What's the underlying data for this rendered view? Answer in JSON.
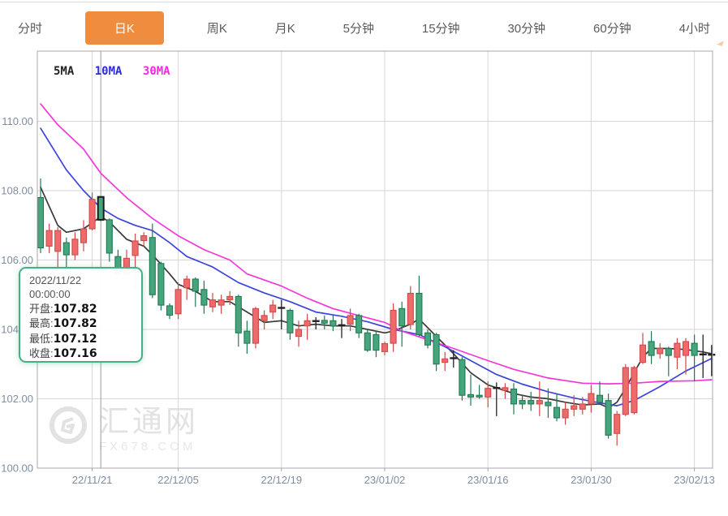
{
  "tabs": {
    "items": [
      {
        "id": "tab-fenshi",
        "label": "分时",
        "active": false
      },
      {
        "id": "tab-ri-k",
        "label": "日K",
        "active": true
      },
      {
        "id": "tab-zhou-k",
        "label": "周K",
        "active": false
      },
      {
        "id": "tab-yue-k",
        "label": "月K",
        "active": false
      },
      {
        "id": "tab-5min",
        "label": "5分钟",
        "active": false
      },
      {
        "id": "tab-15min",
        "label": "15分钟",
        "active": false
      },
      {
        "id": "tab-30min",
        "label": "30分钟",
        "active": false
      },
      {
        "id": "tab-60min",
        "label": "60分钟",
        "active": false
      },
      {
        "id": "tab-4hour",
        "label": "4小时",
        "active": false
      }
    ]
  },
  "legend": {
    "ma5": "5MA",
    "ma10": "10MA",
    "ma30": "30MA"
  },
  "tooltip": {
    "date": "2022/11/22",
    "time": "00:00:00",
    "open_label": "开盘",
    "open": "107.82",
    "high_label": "最高",
    "high": "107.82",
    "low_label": "最低",
    "low": "107.12",
    "close_label": "收盘",
    "close": "107.16"
  },
  "watermark": {
    "brand": "汇通网",
    "site": "FX678.COM"
  },
  "colors": {
    "accent": "#ef8c3e",
    "up_fill": "#ef6a6a",
    "up_stroke": "#cf4a4a",
    "down_fill": "#47a57e",
    "down_stroke": "#1f7a52",
    "doji": "#222222",
    "grid": "#d6d6d6",
    "border": "#a8a8a8",
    "crosshair": "#999999",
    "axis_text": "#7f8da1",
    "ma5": "#3a3a3a",
    "ma10": "#3c44dd",
    "ma30": "#f437d8"
  },
  "chart_data": {
    "type": "candlestick",
    "title": "",
    "ylabel": "",
    "ylim": [
      100,
      110.7
    ],
    "grid": true,
    "legend_entries": [
      "5MA",
      "10MA",
      "30MA"
    ],
    "selected_index": 7,
    "y_axis": {
      "ticks": [
        {
          "value": 110,
          "label": "110.00"
        },
        {
          "value": 108,
          "label": "108.00"
        },
        {
          "value": 106,
          "label": "106.00"
        },
        {
          "value": 104,
          "label": "104.00"
        },
        {
          "value": 102,
          "label": "102.00"
        },
        {
          "value": 100,
          "label": "100.00"
        }
      ]
    },
    "x_axis": {
      "ticks": [
        {
          "index": 6,
          "label": "22/11/21"
        },
        {
          "index": 16,
          "label": "22/12/05"
        },
        {
          "index": 28,
          "label": "22/12/19"
        },
        {
          "index": 40,
          "label": "23/01/02"
        },
        {
          "index": 52,
          "label": "23/01/16"
        },
        {
          "index": 64,
          "label": "23/01/30"
        },
        {
          "index": 76,
          "label": "23/02/13"
        }
      ]
    },
    "candles_format": [
      "open",
      "high",
      "low",
      "close"
    ],
    "candles": [
      [
        107.8,
        108.35,
        106.2,
        106.35
      ],
      [
        106.4,
        107.05,
        106.2,
        106.85
      ],
      [
        106.25,
        106.95,
        105.8,
        106.85
      ],
      [
        106.5,
        106.65,
        105.7,
        106.15
      ],
      [
        106.15,
        106.8,
        106.0,
        106.6
      ],
      [
        106.5,
        107.15,
        106.25,
        106.9
      ],
      [
        106.9,
        107.95,
        106.85,
        107.75
      ],
      [
        107.82,
        107.82,
        107.12,
        107.16
      ],
      [
        107.16,
        107.2,
        105.95,
        106.2
      ],
      [
        106.1,
        106.3,
        105.45,
        105.6
      ],
      [
        105.6,
        106.3,
        105.45,
        106.05
      ],
      [
        106.13,
        106.76,
        105.15,
        106.55
      ],
      [
        106.56,
        106.8,
        106.4,
        106.7
      ],
      [
        106.65,
        107.05,
        104.9,
        105.0
      ],
      [
        105.9,
        105.95,
        104.55,
        104.7
      ],
      [
        104.68,
        104.75,
        104.3,
        104.41
      ],
      [
        104.45,
        105.35,
        104.3,
        105.15
      ],
      [
        105.2,
        105.55,
        104.85,
        105.45
      ],
      [
        105.45,
        105.5,
        104.65,
        105.1
      ],
      [
        105.15,
        105.4,
        104.45,
        104.7
      ],
      [
        104.65,
        105.05,
        104.5,
        104.85
      ],
      [
        104.7,
        105.0,
        104.45,
        104.85
      ],
      [
        104.85,
        105.1,
        104.7,
        104.95
      ],
      [
        104.95,
        105.0,
        103.5,
        103.9
      ],
      [
        103.95,
        104.25,
        103.3,
        103.6
      ],
      [
        103.6,
        104.65,
        103.45,
        104.6
      ],
      [
        104.25,
        104.55,
        104.0,
        104.4
      ],
      [
        104.5,
        104.85,
        104.3,
        104.7
      ],
      [
        104.6,
        104.85,
        104.0,
        104.62
      ],
      [
        104.55,
        104.6,
        103.7,
        103.9
      ],
      [
        103.8,
        104.25,
        103.5,
        104.0
      ],
      [
        104.1,
        104.45,
        103.7,
        104.25
      ],
      [
        104.22,
        104.35,
        104.0,
        104.24
      ],
      [
        104.26,
        104.4,
        104.0,
        104.18
      ],
      [
        104.25,
        104.4,
        103.95,
        104.1
      ],
      [
        104.1,
        104.3,
        103.75,
        104.12
      ],
      [
        104.15,
        104.6,
        103.95,
        104.4
      ],
      [
        104.4,
        104.45,
        103.75,
        103.9
      ],
      [
        103.9,
        104.0,
        103.35,
        103.4
      ],
      [
        103.85,
        103.95,
        103.2,
        103.4
      ],
      [
        103.36,
        103.65,
        103.25,
        103.59
      ],
      [
        103.6,
        104.75,
        103.35,
        104.55
      ],
      [
        104.6,
        104.8,
        103.5,
        104.1
      ],
      [
        104.14,
        105.25,
        104.0,
        105.04
      ],
      [
        105.04,
        105.55,
        103.8,
        103.85
      ],
      [
        103.9,
        104.0,
        103.45,
        103.55
      ],
      [
        103.85,
        103.9,
        102.8,
        103.0
      ],
      [
        103.05,
        103.35,
        102.8,
        103.15
      ],
      [
        103.15,
        103.4,
        102.9,
        103.17
      ],
      [
        103.13,
        103.2,
        101.95,
        102.1
      ],
      [
        102.12,
        102.7,
        101.8,
        102.05
      ],
      [
        102.1,
        102.4,
        102.0,
        102.05
      ],
      [
        102.05,
        102.5,
        101.75,
        102.3
      ],
      [
        102.3,
        102.47,
        101.5,
        102.31
      ],
      [
        102.24,
        102.45,
        102.0,
        102.32
      ],
      [
        102.28,
        102.45,
        101.55,
        101.85
      ],
      [
        101.95,
        102.1,
        101.7,
        101.85
      ],
      [
        101.95,
        102.2,
        101.65,
        101.85
      ],
      [
        101.85,
        102.5,
        101.5,
        101.95
      ],
      [
        101.9,
        102.3,
        101.45,
        101.8
      ],
      [
        101.75,
        102.15,
        101.35,
        101.45
      ],
      [
        101.45,
        101.9,
        101.25,
        101.7
      ],
      [
        101.7,
        102.1,
        101.5,
        101.8
      ],
      [
        101.7,
        102.05,
        101.55,
        101.85
      ],
      [
        101.85,
        102.4,
        101.6,
        102.15
      ],
      [
        102.1,
        102.5,
        101.85,
        101.9
      ],
      [
        101.95,
        102.15,
        100.85,
        100.95
      ],
      [
        101.0,
        101.65,
        100.65,
        101.55
      ],
      [
        101.55,
        103.0,
        101.5,
        102.9
      ],
      [
        101.6,
        102.95,
        101.55,
        102.9
      ],
      [
        103.05,
        103.9,
        103.0,
        103.55
      ],
      [
        103.65,
        103.95,
        103.0,
        103.25
      ],
      [
        103.3,
        103.6,
        103.15,
        103.45
      ],
      [
        103.45,
        103.5,
        102.65,
        103.25
      ],
      [
        103.2,
        103.75,
        102.85,
        103.6
      ],
      [
        103.25,
        103.75,
        102.7,
        103.65
      ],
      [
        103.6,
        103.85,
        102.5,
        103.25
      ],
      [
        103.27,
        103.85,
        102.6,
        103.28
      ],
      [
        103.26,
        103.55,
        102.65,
        103.27
      ]
    ],
    "ma_lines": [
      {
        "name": "5MA",
        "color_key": "ma5",
        "points": [
          [
            0,
            108.1
          ],
          [
            2,
            107.0
          ],
          [
            3,
            106.8
          ],
          [
            5,
            106.9
          ],
          [
            7,
            107.25
          ],
          [
            8,
            107.1
          ],
          [
            10,
            106.6
          ],
          [
            12,
            106.4
          ],
          [
            13,
            106.15
          ],
          [
            15,
            105.6
          ],
          [
            16,
            105.3
          ],
          [
            18,
            105.1
          ],
          [
            20,
            104.8
          ],
          [
            22,
            104.8
          ],
          [
            24,
            104.5
          ],
          [
            26,
            104.2
          ],
          [
            28,
            104.25
          ],
          [
            30,
            104.1
          ],
          [
            32,
            104.15
          ],
          [
            34,
            104.1
          ],
          [
            36,
            104.1
          ],
          [
            38,
            104.0
          ],
          [
            40,
            103.9
          ],
          [
            41,
            103.95
          ],
          [
            43,
            104.15
          ],
          [
            44,
            104.3
          ],
          [
            46,
            103.8
          ],
          [
            48,
            103.3
          ],
          [
            50,
            102.75
          ],
          [
            52,
            102.4
          ],
          [
            55,
            102.15
          ],
          [
            57,
            102.05
          ],
          [
            59,
            102.0
          ],
          [
            61,
            101.9
          ],
          [
            63,
            101.82
          ],
          [
            65,
            101.85
          ],
          [
            66,
            101.74
          ],
          [
            67,
            101.9
          ],
          [
            68,
            102.3
          ],
          [
            69,
            102.75
          ],
          [
            70,
            103.2
          ],
          [
            71,
            103.45
          ],
          [
            73,
            103.45
          ],
          [
            75,
            103.42
          ],
          [
            77,
            103.35
          ],
          [
            78,
            103.3
          ]
        ]
      },
      {
        "name": "10MA",
        "color_key": "ma10",
        "points": [
          [
            0,
            109.8
          ],
          [
            3,
            108.6
          ],
          [
            5,
            108.0
          ],
          [
            7,
            107.5
          ],
          [
            9,
            107.2
          ],
          [
            11,
            107.0
          ],
          [
            13,
            106.85
          ],
          [
            15,
            106.5
          ],
          [
            17,
            106.1
          ],
          [
            20,
            105.8
          ],
          [
            23,
            105.35
          ],
          [
            26,
            105.05
          ],
          [
            29,
            104.8
          ],
          [
            32,
            104.5
          ],
          [
            35,
            104.38
          ],
          [
            38,
            104.22
          ],
          [
            41,
            104.0
          ],
          [
            44,
            103.85
          ],
          [
            47,
            103.5
          ],
          [
            50,
            103.1
          ],
          [
            53,
            102.7
          ],
          [
            56,
            102.42
          ],
          [
            59,
            102.2
          ],
          [
            62,
            102.02
          ],
          [
            65,
            101.88
          ],
          [
            67,
            101.8
          ],
          [
            69,
            101.95
          ],
          [
            72,
            102.35
          ],
          [
            75,
            102.8
          ],
          [
            78,
            103.16
          ]
        ]
      },
      {
        "name": "30MA",
        "color_key": "ma30",
        "points": [
          [
            0,
            110.5
          ],
          [
            2,
            109.9
          ],
          [
            5,
            109.2
          ],
          [
            7,
            108.5
          ],
          [
            10,
            107.8
          ],
          [
            13,
            107.2
          ],
          [
            16,
            106.7
          ],
          [
            19,
            106.3
          ],
          [
            22,
            106.0
          ],
          [
            24,
            105.6
          ],
          [
            28,
            105.25
          ],
          [
            31,
            104.9
          ],
          [
            34,
            104.6
          ],
          [
            37,
            104.4
          ],
          [
            40,
            104.2
          ],
          [
            42,
            103.95
          ],
          [
            45,
            103.7
          ],
          [
            48,
            103.45
          ],
          [
            52,
            103.1
          ],
          [
            55,
            102.85
          ],
          [
            59,
            102.6
          ],
          [
            63,
            102.45
          ],
          [
            66,
            102.43
          ],
          [
            69,
            102.45
          ],
          [
            72,
            102.5
          ],
          [
            76,
            102.52
          ],
          [
            78,
            102.55
          ]
        ]
      }
    ]
  }
}
